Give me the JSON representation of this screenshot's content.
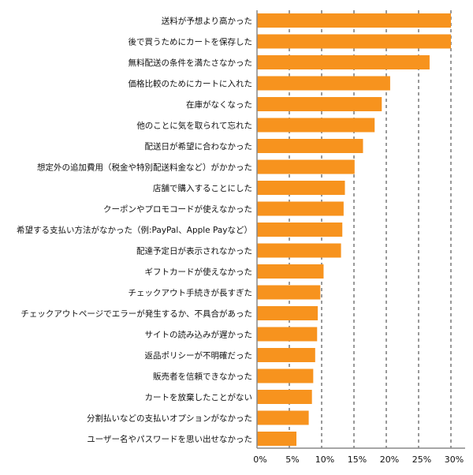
{
  "chart_data": {
    "type": "bar",
    "orientation": "horizontal",
    "title": "",
    "xlabel": "",
    "ylabel": "",
    "xlim": [
      0,
      30
    ],
    "grid": true,
    "bar_color": "#F7931E",
    "x_ticks": [
      "0%",
      "5%",
      "10%",
      "15%",
      "20%",
      "25%",
      "30%"
    ],
    "x_tick_values": [
      0,
      5,
      10,
      15,
      20,
      25,
      30
    ],
    "categories": [
      "送料が予想より高かった",
      "後で買うためにカートを保存した",
      "無料配送の条件を満たさなかった",
      "価格比較のためにカートに入れた",
      "在庫がなくなった",
      "他のことに気を取られて忘れた",
      "配送日が希望に合わなかった",
      "想定外の追加費用（税金や特別配送料金など）がかかった",
      "店舗で購入することにした",
      "クーポンやプロモコードが使えなかった",
      "希望する支払い方法がなかった（例:PayPal、Apple Payなど）",
      "配達予定日が表示されなかった",
      "ギフトカードが使えなかった",
      "チェックアウト手続きが長すぎた",
      "チェックアウトページでエラーが発生するか、不具合があった",
      "サイトの読み込みが遅かった",
      "返品ポリシーが不明確だった",
      "販売者を信頼できなかった",
      "カートを放棄したことがない",
      "分割払いなどの支払いオプションがなかった",
      "ユーザー名やパスワードを思い出せなかった"
    ],
    "values": [
      30.0,
      30.0,
      26.7,
      20.6,
      19.3,
      18.2,
      16.4,
      15.1,
      13.6,
      13.4,
      13.2,
      13.0,
      10.3,
      9.8,
      9.4,
      9.3,
      9.0,
      8.7,
      8.5,
      8.0,
      6.1
    ]
  }
}
